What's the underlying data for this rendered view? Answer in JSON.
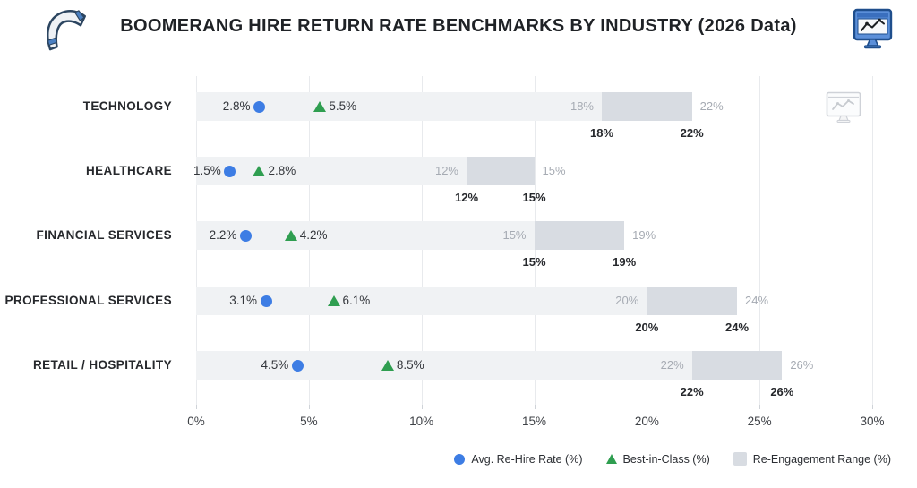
{
  "header": {
    "title": "BOOMERANG HIRE RETURN RATE BENCHMARKS BY INDUSTRY (2026 Data)"
  },
  "icons": {
    "top_left": "boomerang-icon",
    "top_right": "monitor-chart-icon",
    "watermark": "monitor-chart-watermark-icon"
  },
  "colors": {
    "avg_blue": "#3d7de4",
    "best_green": "#2f9e50",
    "range_light": "#f0f2f4",
    "range_dark": "#d8dce2",
    "grid": "#e8eaed",
    "gray_label": "#a6abb3",
    "text_dark": "#26282c"
  },
  "chart_data": {
    "type": "bar",
    "subtype": "dot-and-range-benchmark",
    "title": "BOOMERANG HIRE RETURN RATE BENCHMARKS BY INDUSTRY (2026 Data)",
    "categories": [
      "TECHNOLOGY",
      "HEALTHCARE",
      "FINANCIAL SERVICES",
      "PROFESSIONAL SERVICES",
      "RETAIL / HOSPITALITY"
    ],
    "series": [
      {
        "name": "Avg. Re-Hire Rate (%)",
        "marker": "circle",
        "color": "#3d7de4",
        "values": [
          2.8,
          1.5,
          2.2,
          3.1,
          4.5
        ],
        "labels": [
          "2.8%",
          "1.5%",
          "2.2%",
          "3.1%",
          "4.5%"
        ]
      },
      {
        "name": "Best-in-Class (%)",
        "marker": "triangle",
        "color": "#2f9e50",
        "values": [
          5.5,
          2.8,
          4.2,
          6.1,
          8.5
        ],
        "labels": [
          "5.5%",
          "2.8%",
          "4.2%",
          "6.1%",
          "8.5%"
        ]
      },
      {
        "name": "Re-Engagement Range (%)",
        "marker": "range-bar",
        "color": "#d8dce2",
        "ranges": [
          [
            18,
            22
          ],
          [
            12,
            15
          ],
          [
            15,
            19
          ],
          [
            20,
            24
          ],
          [
            22,
            26
          ]
        ],
        "range_labels": [
          [
            "18%",
            "22%"
          ],
          [
            "12%",
            "15%"
          ],
          [
            "15%",
            "19%"
          ],
          [
            "20%",
            "24%"
          ],
          [
            "22%",
            "26%"
          ]
        ]
      }
    ],
    "xlabel": "",
    "xlim": [
      0,
      30
    ],
    "x_ticks": [
      {
        "value": 0,
        "label": "0%"
      },
      {
        "value": 5,
        "label": "5%"
      },
      {
        "value": 10,
        "label": "10%"
      },
      {
        "value": 15,
        "label": "15%"
      },
      {
        "value": 20,
        "label": "20%"
      },
      {
        "value": 25,
        "label": "25%"
      },
      {
        "value": 30,
        "label": "30%"
      }
    ],
    "grid": true,
    "legend_position": "bottom-right"
  }
}
